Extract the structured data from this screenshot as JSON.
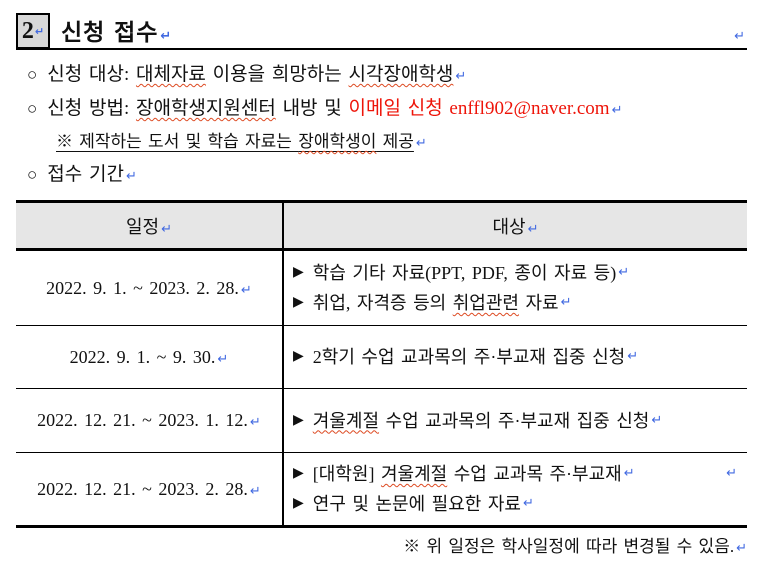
{
  "page": {
    "return_mark": "↵"
  },
  "colors": {
    "accent_red": "#ee1409",
    "mark_blue": "#4169e1",
    "spell_red": "#dd4a22",
    "header_bg": "#e6e6e6",
    "box_gray": "#d8d8d8"
  },
  "header": {
    "box_number": "2",
    "title": "신청 접수"
  },
  "bullets": [
    {
      "marker": "○",
      "segments": [
        {
          "t": "신청 대상: "
        },
        {
          "t": "대체자료",
          "wavy": true
        },
        {
          "t": " 이용을 희망하는 "
        },
        {
          "t": "시각장애학생",
          "wavy": true
        }
      ]
    },
    {
      "marker": "○",
      "segments": [
        {
          "t": "신청 방법: "
        },
        {
          "t": "장애학생지원센터",
          "wavy": true
        },
        {
          "t": " 내방 및 "
        },
        {
          "t": "이메일 신청 enffl902@naver.com",
          "red": true
        }
      ]
    },
    {
      "marker": "※",
      "segments": [
        {
          "t": "※ 제작하는 도서 및 학습 자료는 "
        },
        {
          "t": "장애학생이",
          "wavy": true
        },
        {
          "t": " 제공"
        }
      ]
    },
    {
      "marker": "○",
      "segments": [
        {
          "t": "접수 기간"
        }
      ]
    }
  ],
  "table": {
    "item_marker": "▶",
    "headers": [
      {
        "label": "일정"
      },
      {
        "label": "대상"
      }
    ],
    "rows": [
      {
        "schedule": "2022. 9. 1. ~ 2023. 2. 28.",
        "items": [
          {
            "segments": [
              {
                "t": "학습 기타 자료(PPT, PDF, 종이 자료 등)"
              }
            ]
          },
          {
            "segments": [
              {
                "t": "취업, 자격증 등의 "
              },
              {
                "t": "취업관련",
                "wavy": true
              },
              {
                "t": " 자료"
              }
            ]
          }
        ]
      },
      {
        "schedule": "2022. 9. 1. ~ 9. 30.",
        "items": [
          {
            "segments": [
              {
                "t": "2학기 수업 교과목의 주·부교재 집중 신청"
              }
            ]
          }
        ]
      },
      {
        "schedule": "2022. 12. 21. ~ 2023. 1. 12.",
        "items": [
          {
            "segments": [
              {
                "t": "겨울계절",
                "wavy": true
              },
              {
                "t": " 수업 교과목의 주·부교재 집중 신청"
              }
            ]
          }
        ]
      },
      {
        "schedule": "2022. 12. 21. ~ 2023. 2. 28.",
        "items": [
          {
            "segments": [
              {
                "t": "[대학원] "
              },
              {
                "t": "겨울계절",
                "wavy": true
              },
              {
                "t": " 수업 교과목 주·부교재"
              }
            ],
            "extra_return": true
          },
          {
            "segments": [
              {
                "t": "연구 및 논문에 필요한 자료 "
              }
            ]
          }
        ]
      }
    ]
  },
  "footer": {
    "text": "※ 위 일정은 학사일정에 따라 변경될 수 있음."
  }
}
